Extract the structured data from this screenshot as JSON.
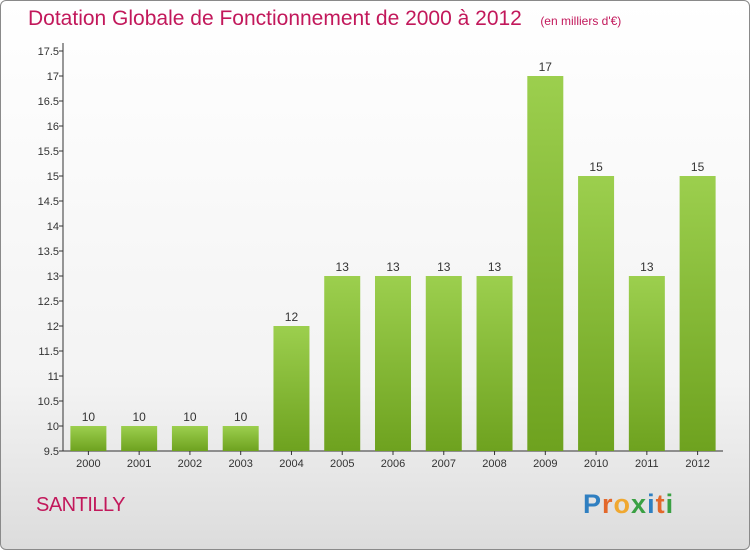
{
  "header": {
    "title": "Dotation Globale de Fonctionnement de 2000 à 2012",
    "unit": "(en milliers d'€)"
  },
  "footer": {
    "commune": "SANTILLY",
    "brand": "Proxiti"
  },
  "colors": {
    "bar_light": "#9ccf4e",
    "bar_dark": "#6ea21f",
    "title": "#c2185b",
    "axis": "#333333"
  },
  "chart_data": {
    "type": "bar",
    "title": "Dotation Globale de Fonctionnement de 2000 à 2012",
    "xlabel": "",
    "ylabel": "",
    "categories": [
      "2000",
      "2001",
      "2002",
      "2003",
      "2004",
      "2005",
      "2006",
      "2007",
      "2008",
      "2009",
      "2010",
      "2011",
      "2012"
    ],
    "values": [
      10,
      10,
      10,
      10,
      12,
      13,
      13,
      13,
      13,
      17,
      15,
      13,
      15
    ],
    "data_labels": [
      "10",
      "10",
      "10",
      "10",
      "12",
      "13",
      "13",
      "13",
      "13",
      "17",
      "15",
      "13",
      "15"
    ],
    "ylim": [
      9.5,
      17.5
    ],
    "yticks": [
      9.5,
      10,
      10.5,
      11,
      11.5,
      12,
      12.5,
      13,
      13.5,
      14,
      14.5,
      15,
      15.5,
      16,
      16.5,
      17,
      17.5
    ],
    "grid": false,
    "legend": "none"
  }
}
